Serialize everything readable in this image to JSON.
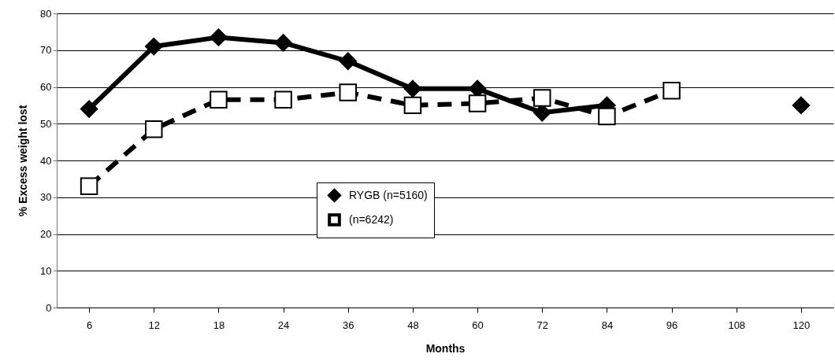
{
  "chart_data": {
    "type": "line",
    "xlabel": "Months",
    "ylabel": "% Excess weight lost",
    "categories": [
      "6",
      "12",
      "18",
      "24",
      "36",
      "48",
      "60",
      "72",
      "84",
      "96",
      "108",
      "120"
    ],
    "series": [
      {
        "name": "RYGB (n=5160)",
        "color": "#000000",
        "marker": "diamond",
        "line_style": "solid",
        "values": [
          54,
          71,
          73.5,
          72,
          67,
          59.5,
          59.5,
          53,
          55,
          null,
          null,
          55
        ]
      },
      {
        "name": "(n=6242)",
        "color": "#000000",
        "marker": "square",
        "line_style": "dashed",
        "values": [
          33,
          48.5,
          56.5,
          56.5,
          58.5,
          55,
          55.5,
          57,
          52,
          59,
          null,
          null
        ]
      }
    ],
    "ylim": [
      0,
      80
    ],
    "yticks": [
      0,
      10,
      20,
      30,
      40,
      50,
      60,
      70,
      80
    ],
    "grid": "y",
    "legend": "center"
  }
}
